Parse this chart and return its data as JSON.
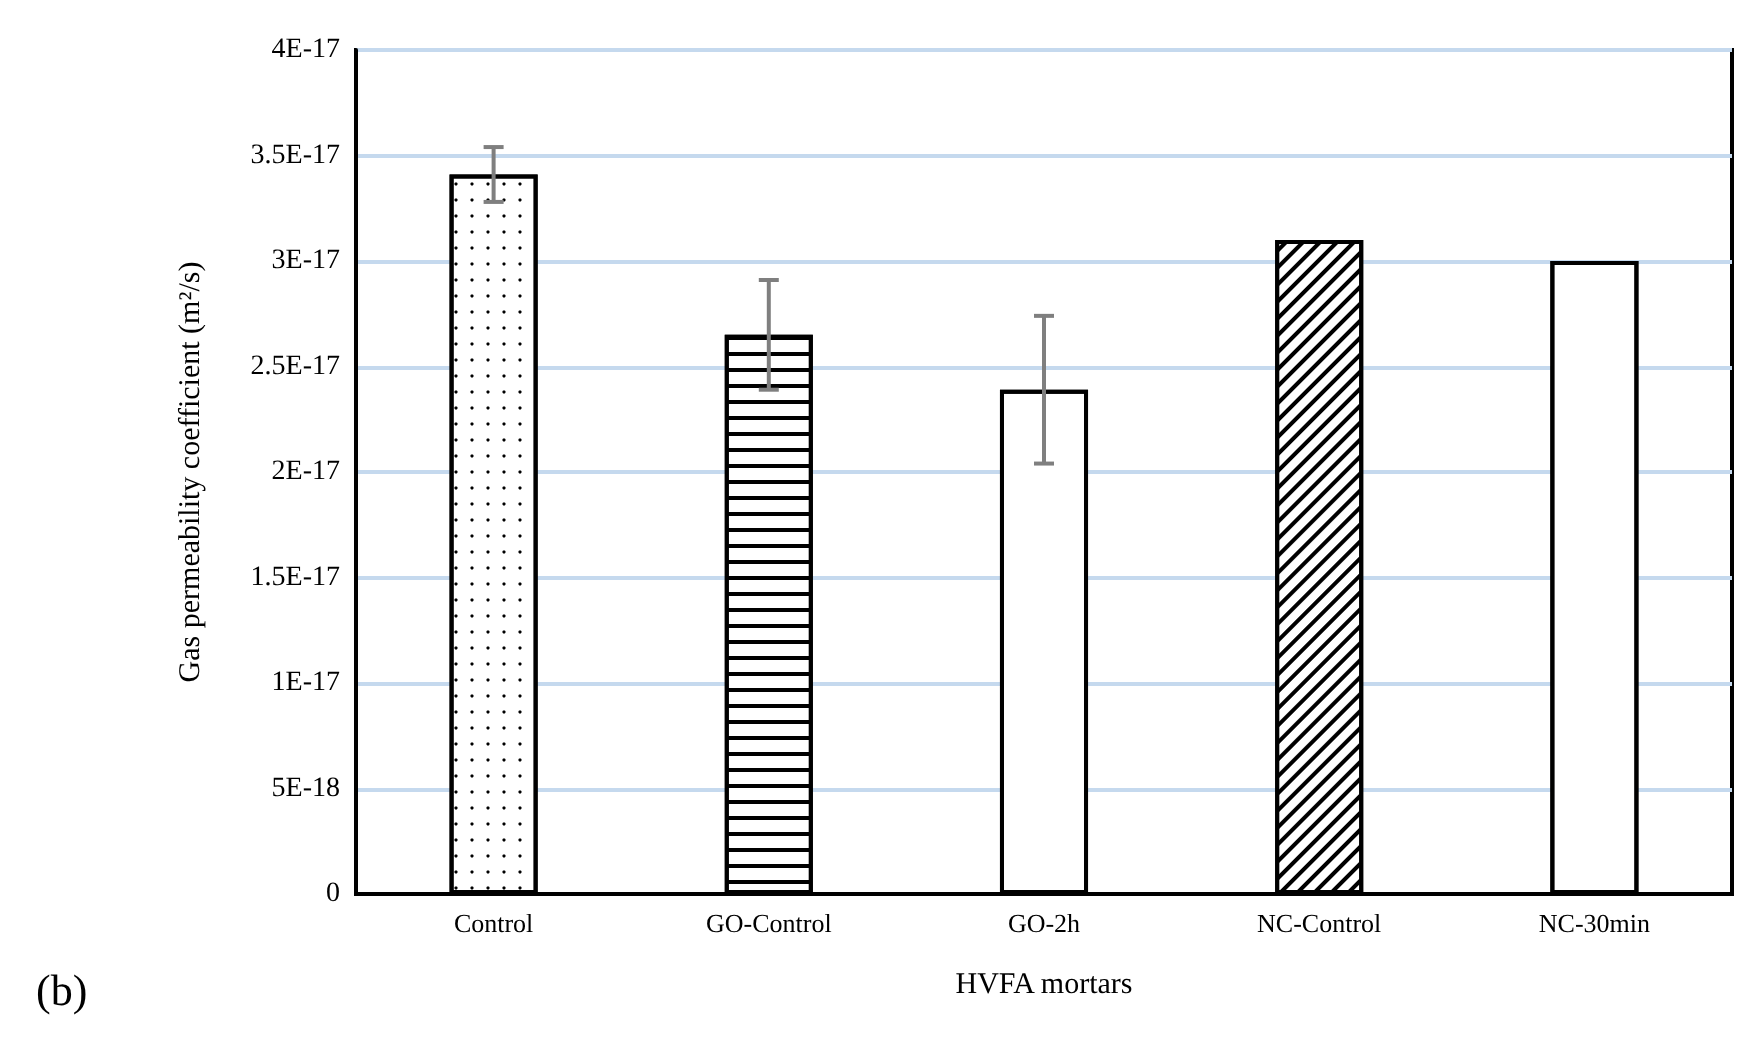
{
  "chart_data": {
    "type": "bar",
    "xlabel": "HVFA mortars",
    "ylabel": "Gas permeability coefficient (m²/s)",
    "categories": [
      "Control",
      "GO-Control",
      "GO-2h",
      "NC-Control",
      "NC-30min"
    ],
    "values": [
      3.41e-17,
      2.65e-17,
      2.39e-17,
      3.1e-17,
      3e-17
    ],
    "errors": [
      1.3e-18,
      2.6e-18,
      3.5e-18,
      null,
      null
    ],
    "colors": [
      "#ffffff",
      "#ffffff",
      "#ffffff",
      "#ffffff",
      "#ffffff"
    ],
    "ylim": [
      0,
      4e-17
    ],
    "yticks": [
      0,
      {
        "value": 5e-18,
        "label": "5E-18"
      },
      {
        "value": 1e-17,
        "label": "1E-17"
      },
      {
        "value": 1.5e-17,
        "label": "1.5E-17"
      },
      {
        "value": 2e-17,
        "label": "2E-17"
      },
      {
        "value": 2.5e-17,
        "label": "2.5E-17"
      },
      {
        "value": 3e-17,
        "label": "3E-17"
      },
      {
        "value": 3.5e-17,
        "label": "3.5E-17"
      },
      {
        "value": 4e-17,
        "label": "4E-17"
      }
    ],
    "grid": "y",
    "annotations": [
      "(b)"
    ]
  }
}
